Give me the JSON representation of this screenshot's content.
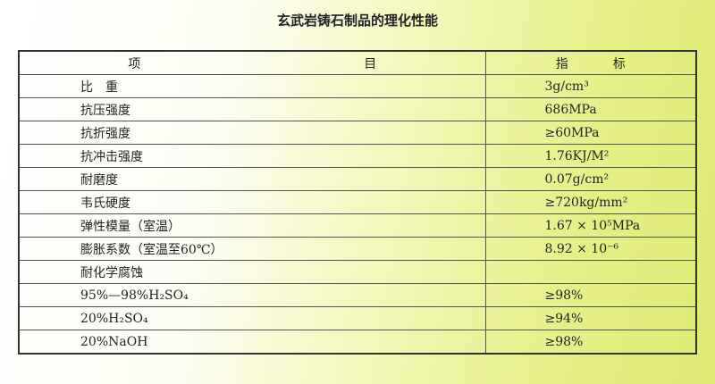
{
  "title": "玄武岩铸石制品的理化性能",
  "header": {
    "item_a": "项",
    "item_b": "目",
    "value_a": "指",
    "value_b": "标"
  },
  "rows": [
    {
      "item": "比　重",
      "value": "3g/cm³"
    },
    {
      "item": "抗压强度",
      "value": "686MPa"
    },
    {
      "item": "抗折强度",
      "value": "≥60MPa"
    },
    {
      "item": "抗冲击强度",
      "value": "1.76KJ/M²"
    },
    {
      "item": "耐磨度",
      "value": "0.07g/cm²"
    },
    {
      "item": "韦氏硬度",
      "value": "≥720kg/mm²"
    },
    {
      "item": "弹性模量（室温）",
      "value": "1.67 × 10⁵MPa"
    },
    {
      "item": "膨胀系数（室温至60℃）",
      "value": "8.92 × 10⁻⁶"
    },
    {
      "item": "耐化学腐蚀",
      "value": ""
    },
    {
      "item": "95%—98%H₂SO₄",
      "value": "≥98%"
    },
    {
      "item": "20%H₂SO₄",
      "value": "≥94%"
    },
    {
      "item": "20%NaOH",
      "value": "≥98%"
    }
  ]
}
